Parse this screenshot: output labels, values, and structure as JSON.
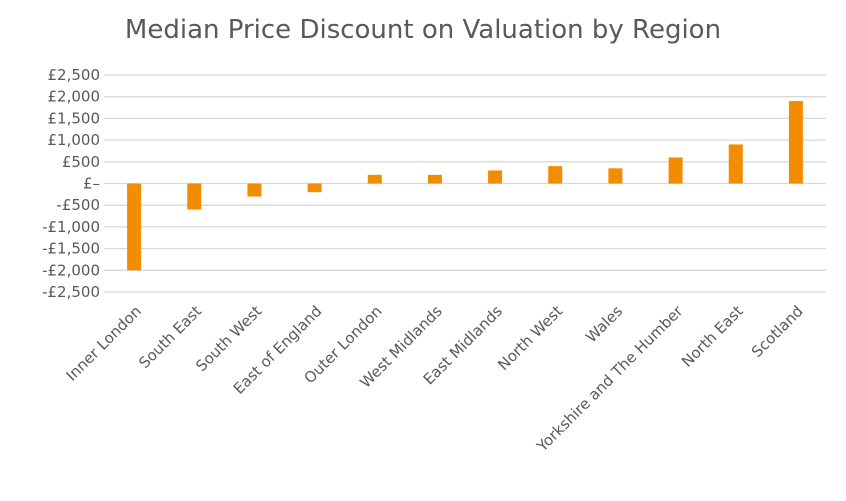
{
  "chart_data": {
    "type": "bar",
    "title": "Median Price Discount on Valuation by Region",
    "categories": [
      "Inner London",
      "South East",
      "South West",
      "East of England",
      "Outer London",
      "West Midlands",
      "East Midlands",
      "North West",
      "Wales",
      "Yorkshire and The Humber",
      "North East",
      "Scotland"
    ],
    "values": [
      -2000,
      -600,
      -300,
      -200,
      200,
      200,
      300,
      400,
      350,
      600,
      900,
      1900
    ],
    "ylim": [
      -2500,
      2500
    ],
    "yticks": [
      2500,
      2000,
      1500,
      1000,
      500,
      0,
      -500,
      -1000,
      -1500,
      -2000,
      -2500
    ],
    "ytick_labels": [
      "£2,500",
      "£2,000",
      "£1,500",
      "£1,000",
      "£500",
      "£–",
      "-£500",
      "-£1,000",
      "-£1,500",
      "-£2,000",
      "-£2,500"
    ],
    "grid": true,
    "legend": "none",
    "bar_color": "#F28C00",
    "grid_color": "#D9D9D9"
  }
}
